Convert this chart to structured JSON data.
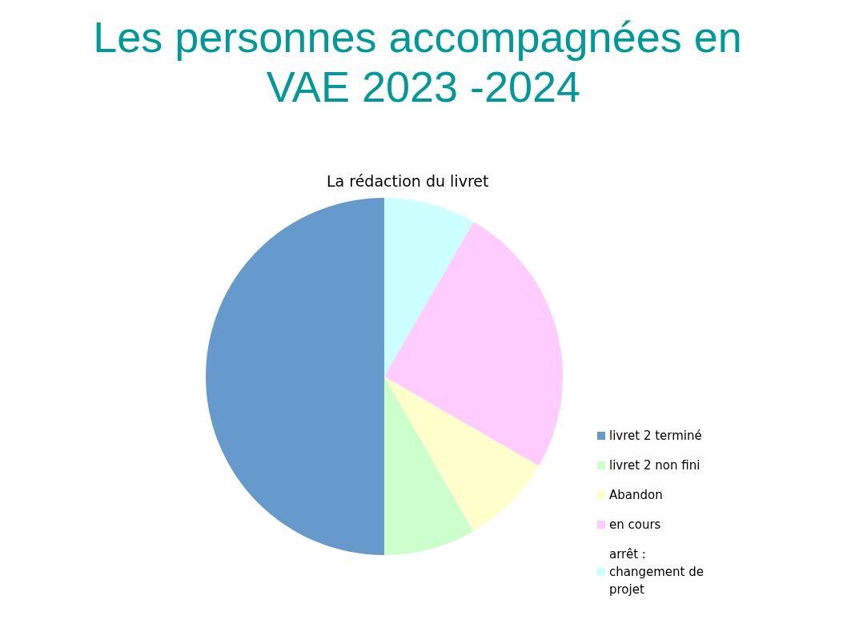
{
  "chart_data": {
    "type": "pie",
    "title": "Les personnes accompagnées en VAE 2023 -2024",
    "subtitle": "La rédaction du livret",
    "categories": [
      "livret 2 terminé",
      "livret 2 non fini",
      "Abandon",
      "en cours",
      "arrêt : changement de projet"
    ],
    "values": [
      50,
      8.33,
      8.33,
      25,
      8.34
    ],
    "colors": [
      "#6699cc",
      "#ccffcc",
      "#ffffcc",
      "#ffccff",
      "#ccffff"
    ],
    "legend": "right"
  }
}
